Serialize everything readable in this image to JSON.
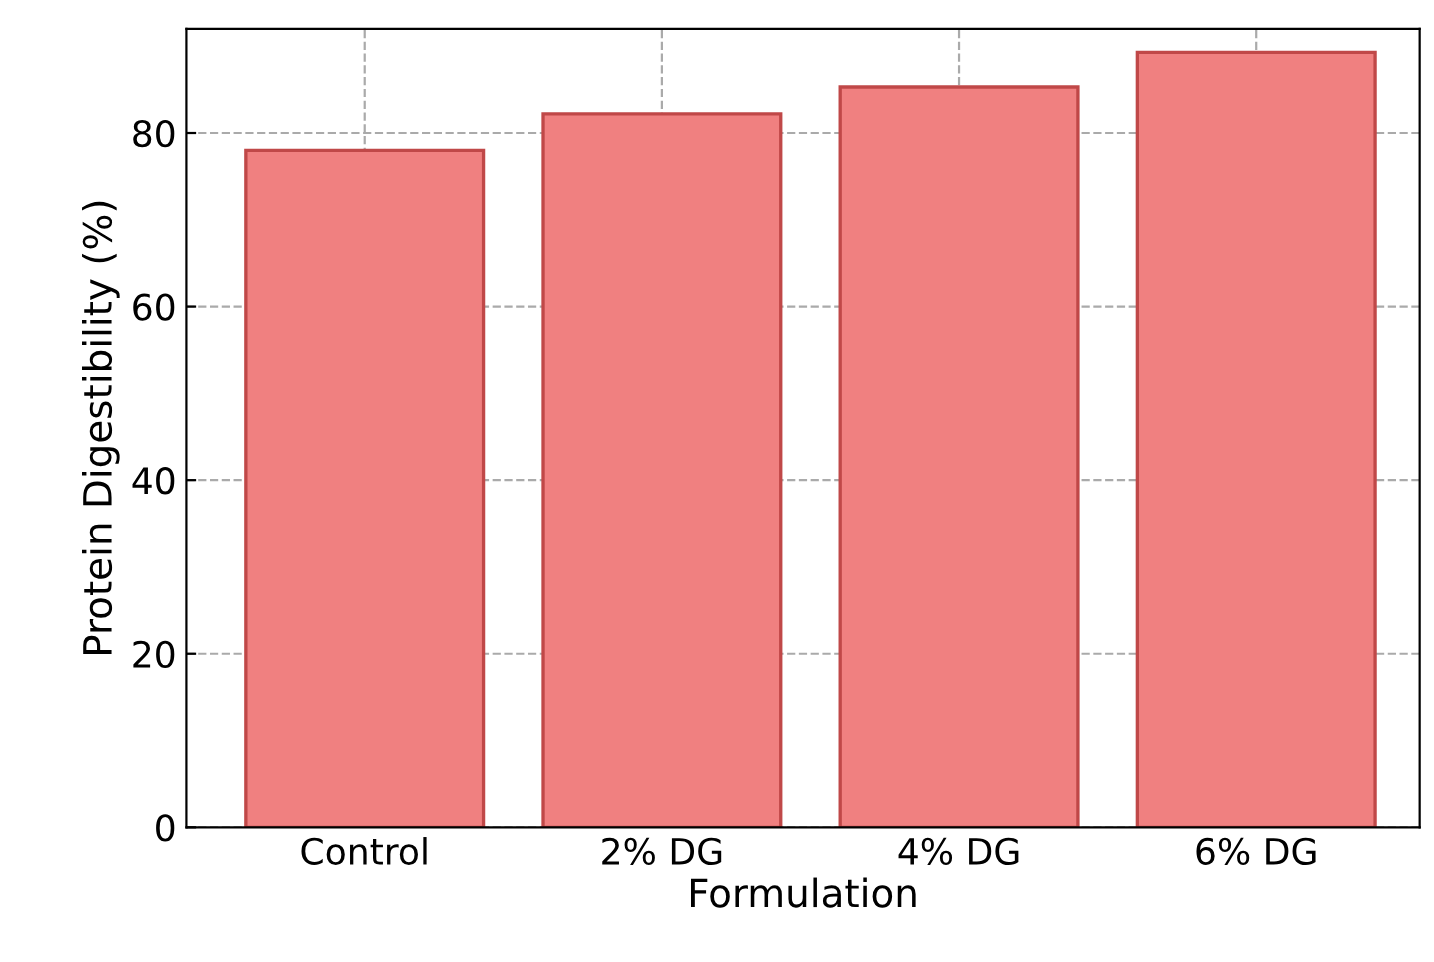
{
  "chart_data": {
    "type": "bar",
    "xlabel": "Formulation",
    "ylabel": "Protein Digestibility (%)",
    "categories": [
      "Control",
      "2% DG",
      "4% DG",
      "6% DG"
    ],
    "values": [
      78,
      82.2,
      85.3,
      89.3
    ],
    "color": "#f08080",
    "ylim": [
      0,
      92
    ],
    "yticks": [
      0,
      20,
      40,
      60,
      80
    ],
    "grid": true
  }
}
